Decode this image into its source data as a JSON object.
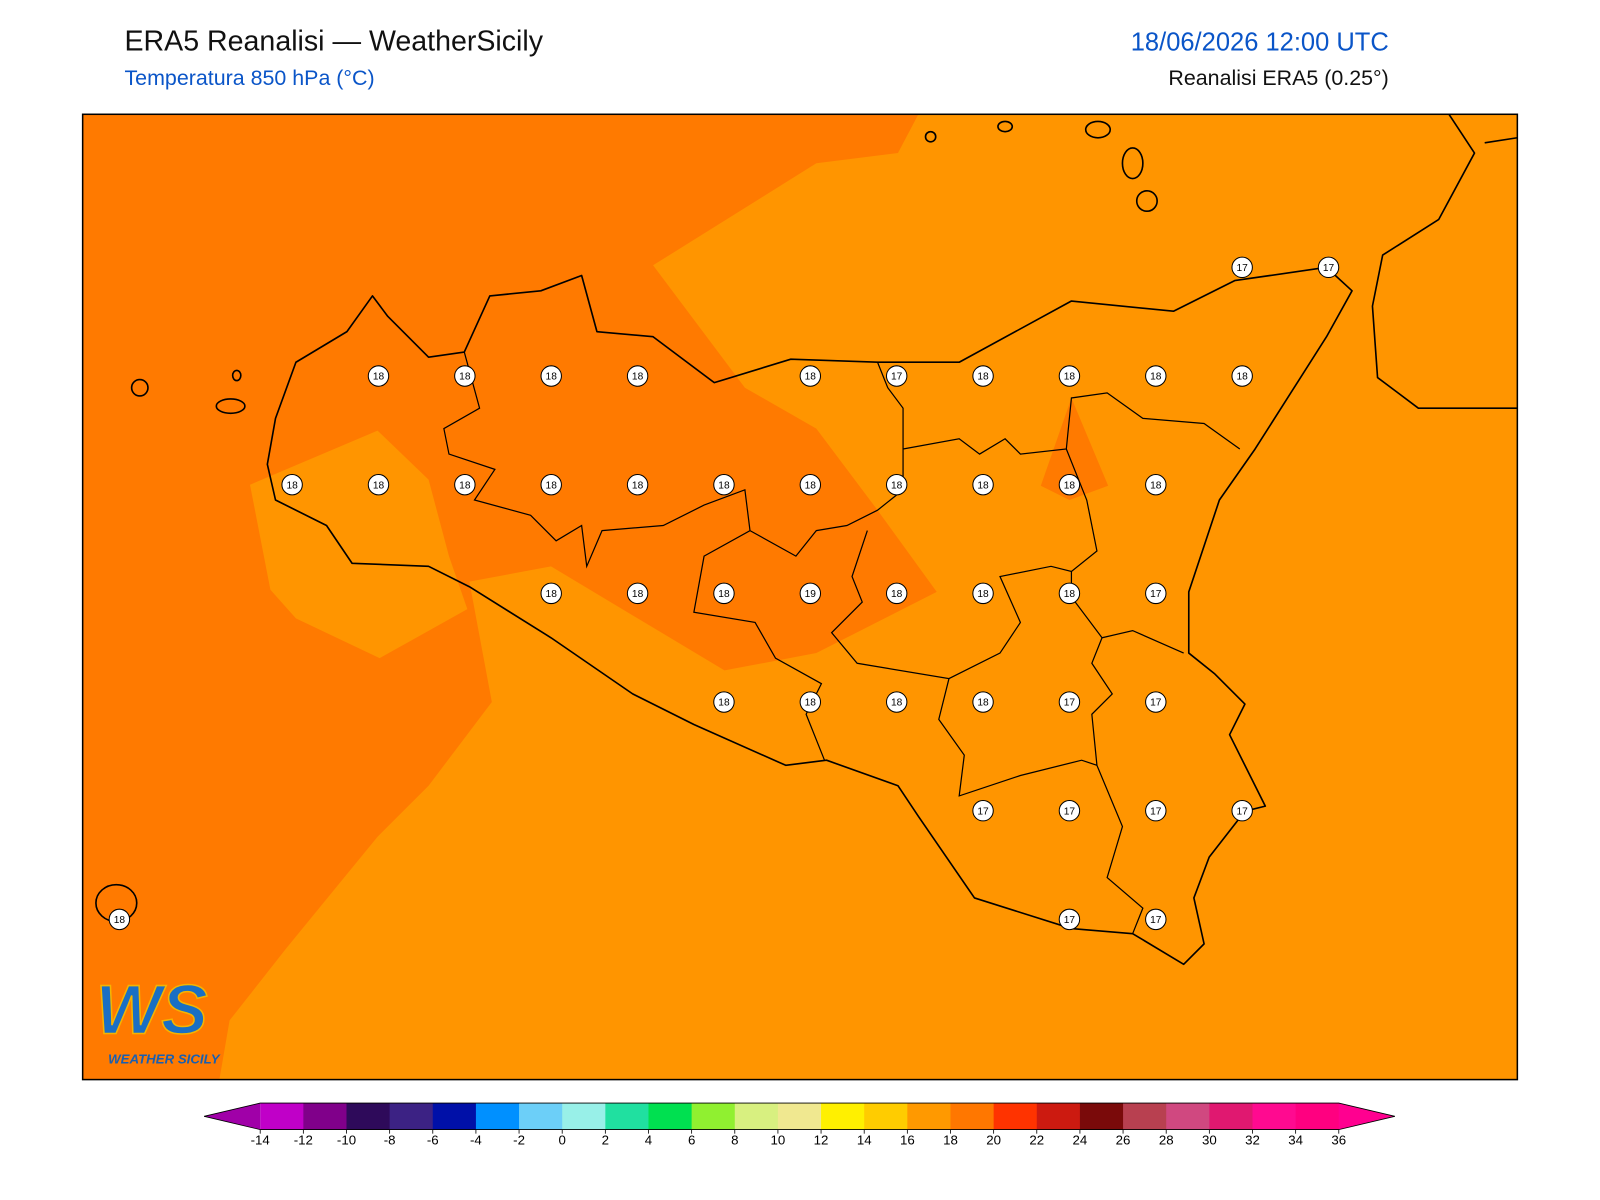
{
  "header": {
    "title": "ERA5 Reanalisi — WeatherSicily",
    "subtitle": "Temperatura 850 hPa (°C)",
    "datetime": "18/06/2026 12:00 UTC",
    "source": "Reanalisi ERA5 (0.25°)"
  },
  "map": {
    "grid_values": [
      [
        null,
        null,
        null,
        null,
        null,
        null,
        null,
        null,
        null,
        null,
        null,
        null,
        null,
        17,
        17
      ],
      [
        null,
        null,
        null,
        18,
        18,
        18,
        18,
        null,
        18,
        17,
        18,
        18,
        18,
        18,
        null
      ],
      [
        null,
        null,
        18,
        18,
        18,
        18,
        18,
        18,
        18,
        18,
        18,
        18,
        18,
        null,
        null
      ],
      [
        null,
        null,
        null,
        null,
        null,
        18,
        18,
        18,
        19,
        18,
        18,
        18,
        17,
        null,
        null
      ],
      [
        null,
        null,
        null,
        null,
        null,
        null,
        null,
        18,
        18,
        18,
        18,
        17,
        17,
        null,
        null
      ],
      [
        null,
        null,
        null,
        null,
        null,
        null,
        null,
        null,
        null,
        null,
        17,
        17,
        17,
        17,
        null
      ],
      [
        18,
        null,
        null,
        null,
        null,
        null,
        null,
        null,
        null,
        null,
        null,
        17,
        17,
        null,
        null
      ]
    ]
  },
  "colorbar": {
    "ticks": [
      -14,
      -12,
      -10,
      -8,
      -6,
      -4,
      -2,
      0,
      2,
      4,
      6,
      8,
      10,
      12,
      14,
      16,
      18,
      20,
      22,
      24,
      26,
      28,
      30,
      32,
      34,
      36
    ],
    "colors": [
      "#c000c8",
      "#80008a",
      "#2e0a5a",
      "#3c2284",
      "#0010a8",
      "#0090ff",
      "#6ccff8",
      "#98f0e8",
      "#20e0a0",
      "#00e050",
      "#90f030",
      "#d8f080",
      "#f0e890",
      "#fff000",
      "#ffcc00",
      "#ff9900",
      "#ff7700",
      "#ff3300",
      "#cc1a10",
      "#7a0a0a",
      "#b84050",
      "#d04880",
      "#e01870",
      "#ff0a90",
      "#ff0080"
    ],
    "under_color": "#a000a8",
    "over_color": "#ff0090"
  },
  "logo": {
    "letters": "WS",
    "text": "WEATHER SICILY"
  }
}
